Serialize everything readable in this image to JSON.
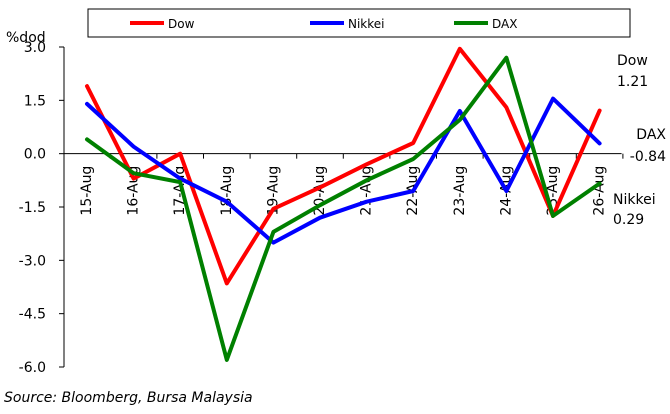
{
  "chart_data": {
    "type": "line",
    "ylabel": "%dod",
    "ylim": [
      -6.0,
      3.0
    ],
    "yticks": [
      3.0,
      1.5,
      0.0,
      -1.5,
      -3.0,
      -4.5,
      -6.0
    ],
    "ytick_labels": [
      "3.0",
      "1.5",
      "0.0",
      "-1.5",
      "-3.0",
      "-4.5",
      "-6.0"
    ],
    "categories": [
      "15-Aug",
      "16-Aug",
      "17-Aug",
      "18-Aug",
      "19-Aug",
      "20-Aug",
      "21-Aug",
      "22-Aug",
      "23-Aug",
      "24-Aug",
      "25-Aug",
      "26-Aug"
    ],
    "legend_position": "top",
    "series": [
      {
        "name": "Dow",
        "color": "#ff0000",
        "values": [
          1.9,
          -0.7,
          0.0,
          -3.65,
          -1.55,
          -0.95,
          -0.3,
          0.3,
          2.95,
          1.3,
          -1.75,
          1.21
        ]
      },
      {
        "name": "Nikkei",
        "color": "#0000ff",
        "values": [
          1.4,
          0.2,
          -0.7,
          -1.35,
          -2.5,
          -1.8,
          -1.35,
          -1.05,
          1.2,
          -1.05,
          1.55,
          0.29
        ]
      },
      {
        "name": "DAX",
        "color": "#008000",
        "values": [
          0.4,
          -0.55,
          -0.8,
          -5.8,
          -2.2,
          -1.45,
          -0.75,
          -0.15,
          0.95,
          2.7,
          -1.75,
          -0.84
        ]
      }
    ],
    "annotations": [
      {
        "series": "Dow",
        "name": "Dow",
        "value": "1.21"
      },
      {
        "series": "DAX",
        "name": "DAX",
        "value": "-0.84"
      },
      {
        "series": "Nikkei",
        "name": "Nikkei",
        "value": "0.29"
      }
    ]
  },
  "footer": {
    "source": "Source: Bloomberg, Bursa Malaysia"
  }
}
